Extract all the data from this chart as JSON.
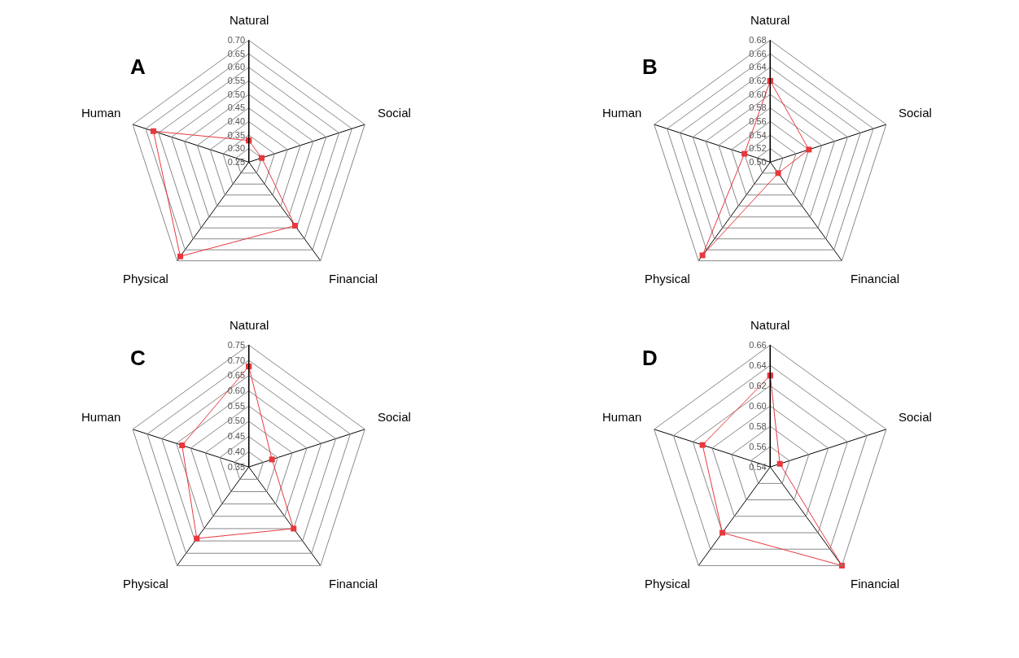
{
  "chart_data": [
    {
      "type": "radar",
      "title": "A",
      "categories": [
        "Natural",
        "Social",
        "Financial",
        "Physical",
        "Human"
      ],
      "series": [
        {
          "color": "#e8383d",
          "values": [
            0.33,
            0.3,
            0.54,
            0.68,
            0.62
          ]
        }
      ],
      "ylim": [
        0.25,
        0.7
      ],
      "yticks": [
        {
          "value": 0.25,
          "label": "0.25"
        },
        {
          "value": 0.3,
          "label": "0.30"
        },
        {
          "value": 0.35,
          "label": "0.35"
        },
        {
          "value": 0.4,
          "label": "0.40"
        },
        {
          "value": 0.45,
          "label": "0.45"
        },
        {
          "value": 0.5,
          "label": "0.50"
        },
        {
          "value": 0.55,
          "label": "0.55"
        },
        {
          "value": 0.6,
          "label": "0.60"
        },
        {
          "value": 0.65,
          "label": "0.65"
        },
        {
          "value": 0.7,
          "label": "0.70"
        }
      ],
      "grid": true,
      "marker": "square",
      "line_style": "solid"
    },
    {
      "type": "radar",
      "title": "B",
      "categories": [
        "Natural",
        "Social",
        "Financial",
        "Physical",
        "Human"
      ],
      "series": [
        {
          "color": "#e8383d",
          "values": [
            0.62,
            0.56,
            0.52,
            0.67,
            0.54
          ]
        }
      ],
      "ylim": [
        0.5,
        0.68
      ],
      "yticks": [
        {
          "value": 0.5,
          "label": "0.50"
        },
        {
          "value": 0.52,
          "label": "0.52"
        },
        {
          "value": 0.54,
          "label": "0.54"
        },
        {
          "value": 0.56,
          "label": "0.56"
        },
        {
          "value": 0.58,
          "label": "0.58"
        },
        {
          "value": 0.6,
          "label": "0.60"
        },
        {
          "value": 0.62,
          "label": "0.62"
        },
        {
          "value": 0.64,
          "label": "0.64"
        },
        {
          "value": 0.66,
          "label": "0.66"
        },
        {
          "value": 0.68,
          "label": "0.68"
        }
      ],
      "grid": true,
      "marker": "square",
      "line_style": "solid"
    },
    {
      "type": "radar",
      "title": "C",
      "categories": [
        "Natural",
        "Social",
        "Financial",
        "Physical",
        "Human"
      ],
      "series": [
        {
          "color": "#e8383d",
          "values": [
            0.68,
            0.43,
            0.6,
            0.64,
            0.58
          ]
        }
      ],
      "ylim": [
        0.35,
        0.75
      ],
      "yticks": [
        {
          "value": 0.35,
          "label": "0.35"
        },
        {
          "value": 0.4,
          "label": "0.40"
        },
        {
          "value": 0.45,
          "label": "0.45"
        },
        {
          "value": 0.5,
          "label": "0.50"
        },
        {
          "value": 0.55,
          "label": "0.55"
        },
        {
          "value": 0.6,
          "label": "0.60"
        },
        {
          "value": 0.65,
          "label": "0.65"
        },
        {
          "value": 0.7,
          "label": "0.70"
        },
        {
          "value": 0.75,
          "label": "0.75"
        }
      ],
      "grid": true,
      "marker": "square",
      "line_style": "solid"
    },
    {
      "type": "radar",
      "title": "D",
      "categories": [
        "Natural",
        "Social",
        "Financial",
        "Physical",
        "Human"
      ],
      "series": [
        {
          "color": "#e8383d",
          "values": [
            0.63,
            0.55,
            0.66,
            0.62,
            0.61
          ]
        }
      ],
      "ylim": [
        0.54,
        0.66
      ],
      "yticks": [
        {
          "value": 0.54,
          "label": "0.54"
        },
        {
          "value": 0.56,
          "label": "0.56"
        },
        {
          "value": 0.58,
          "label": "0.58"
        },
        {
          "value": 0.6,
          "label": "0.60"
        },
        {
          "value": 0.62,
          "label": "0.62"
        },
        {
          "value": 0.64,
          "label": "0.64"
        },
        {
          "value": 0.66,
          "label": "0.66"
        }
      ],
      "grid": true,
      "marker": "square",
      "line_style": "solid"
    }
  ]
}
